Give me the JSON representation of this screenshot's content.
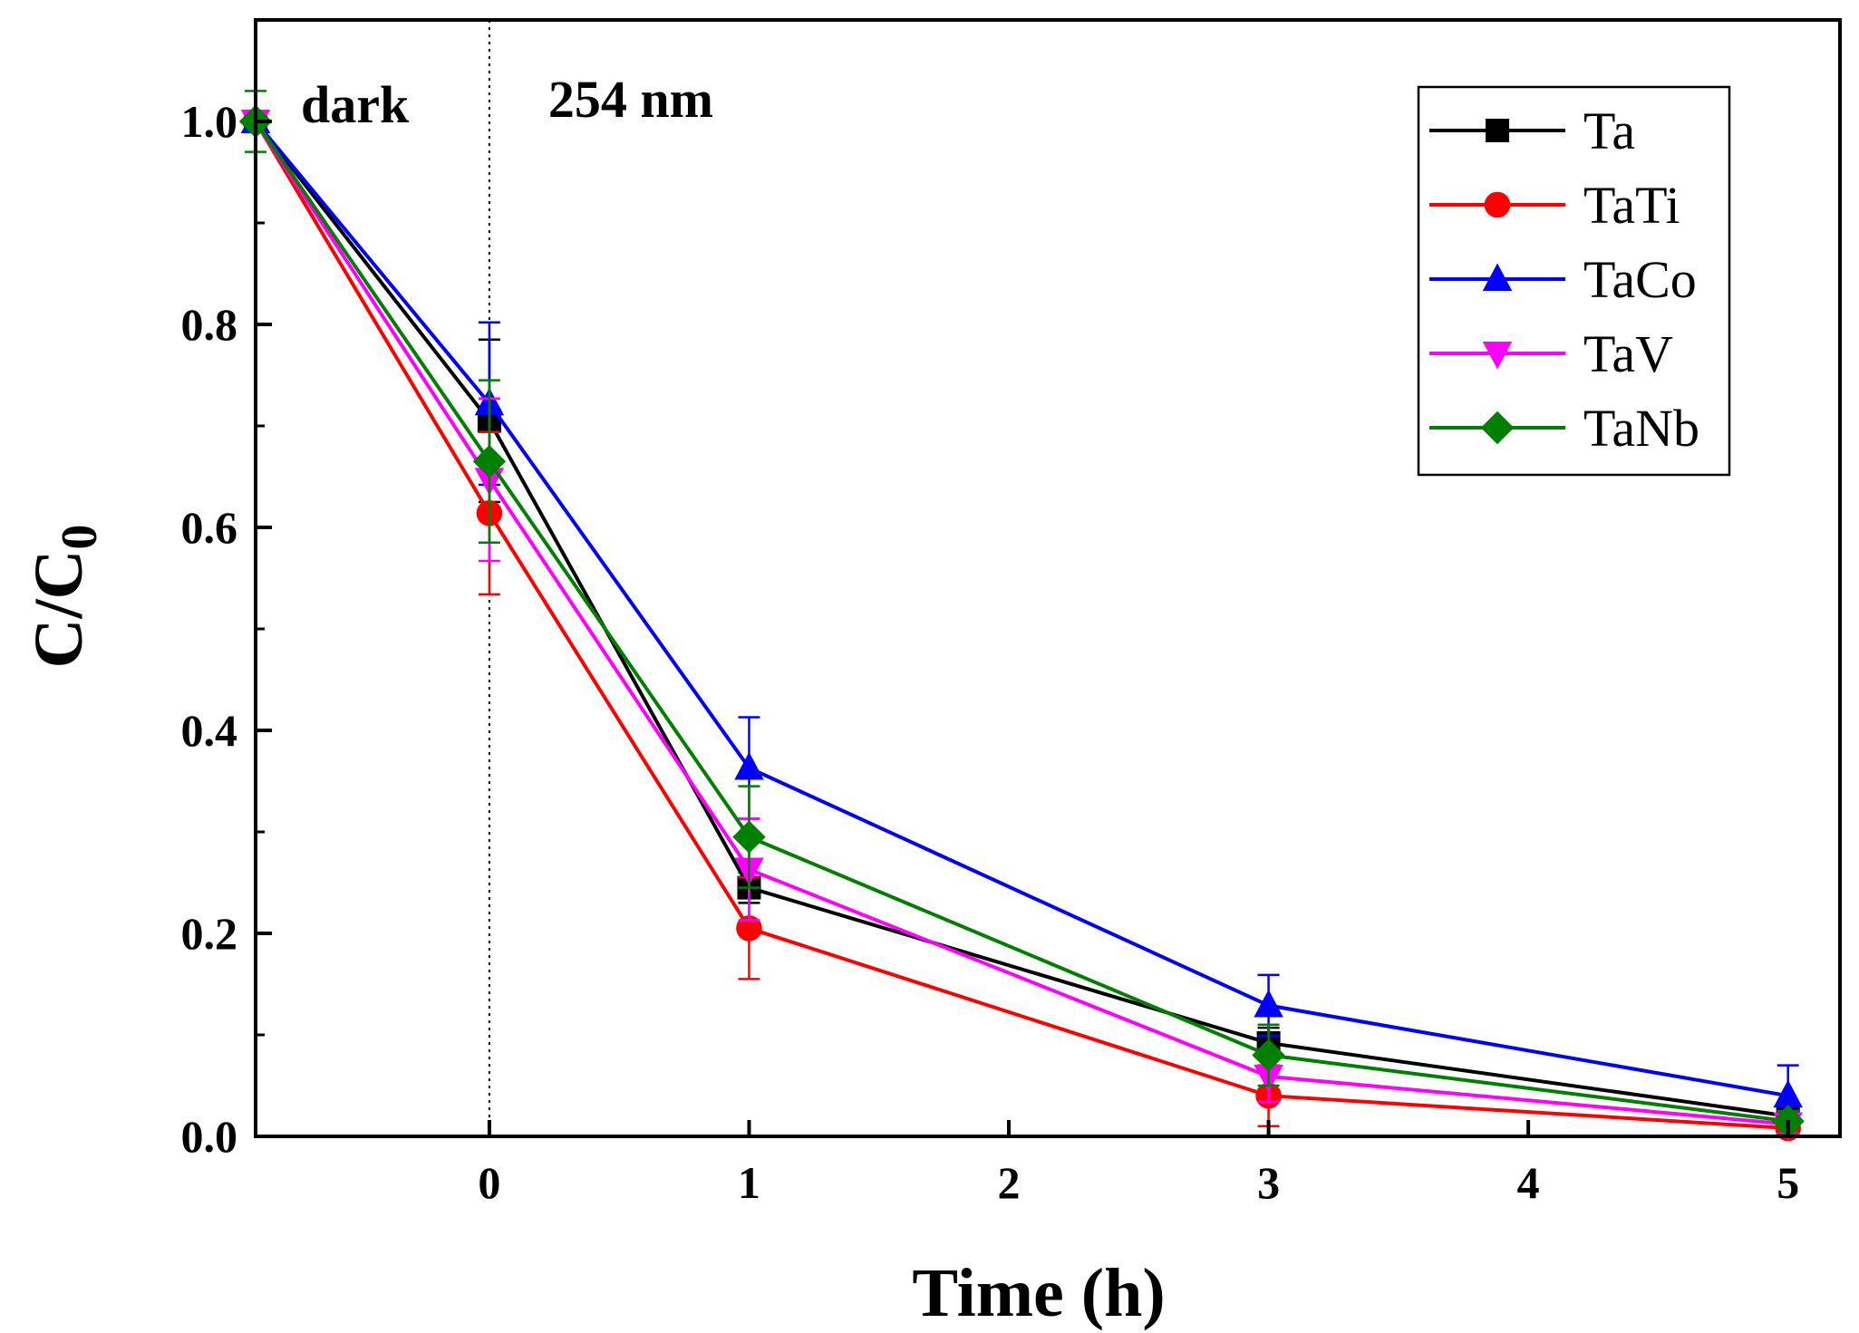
{
  "chart_data": {
    "type": "line",
    "xlabel": "Time (h)",
    "ylabel_main": "C/C",
    "ylabel_sub": "0",
    "xlim": [
      -0.9,
      5.2
    ],
    "ylim": [
      0,
      1.1
    ],
    "x_ticks": [
      0,
      1,
      2,
      3,
      4,
      5
    ],
    "x_tick_labels": [
      "0",
      "1",
      "2",
      "3",
      "4",
      "5"
    ],
    "y_ticks": [
      0,
      0.2,
      0.4,
      0.6,
      0.8,
      1.0
    ],
    "y_tick_labels": [
      "0.0",
      "0.2",
      "0.4",
      "0.6",
      "0.8",
      "1.0"
    ],
    "annotations": {
      "dark": "dark",
      "light": "254 nm",
      "divider_x": 0
    },
    "x": [
      -0.9,
      0,
      1,
      3,
      5
    ],
    "series": [
      {
        "name": "Ta",
        "color": "#000000",
        "marker": "square",
        "values": [
          1.0,
          0.705,
          0.245,
          0.092,
          0.02
        ],
        "errors": [
          0.0,
          0.08,
          0.015,
          0.015,
          0.008
        ]
      },
      {
        "name": "TaTi",
        "color": "#ff0000",
        "marker": "circle",
        "values": [
          1.0,
          0.614,
          0.205,
          0.04,
          0.008
        ],
        "errors": [
          0.0,
          0.08,
          0.05,
          0.03,
          0.006
        ]
      },
      {
        "name": "TaCo",
        "color": "#0000ff",
        "marker": "triangle-up",
        "values": [
          1.0,
          0.722,
          0.363,
          0.129,
          0.04
        ],
        "errors": [
          0.0,
          0.08,
          0.05,
          0.03,
          0.03
        ]
      },
      {
        "name": "TaV",
        "color": "#ff00ff",
        "marker": "triangle-down",
        "values": [
          1.0,
          0.647,
          0.263,
          0.059,
          0.012
        ],
        "errors": [
          0.0,
          0.08,
          0.05,
          0.025,
          0.008
        ]
      },
      {
        "name": "TaNb",
        "color": "#008000",
        "marker": "diamond",
        "values": [
          1.0,
          0.665,
          0.295,
          0.08,
          0.015
        ],
        "errors": [
          0.03,
          0.08,
          0.05,
          0.03,
          0.01
        ]
      }
    ]
  }
}
